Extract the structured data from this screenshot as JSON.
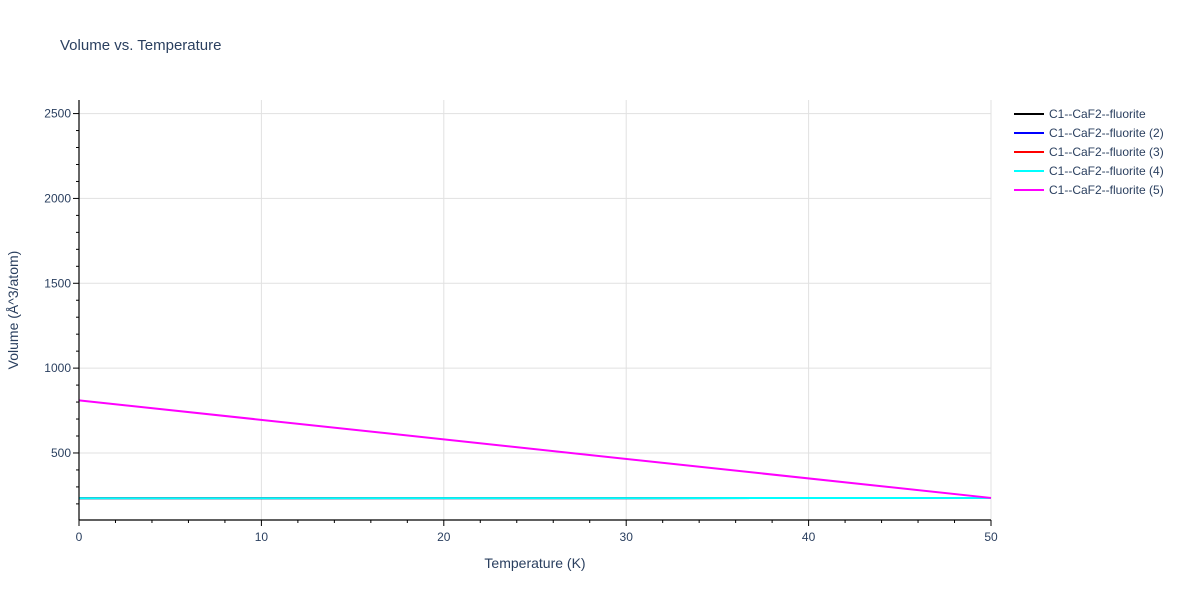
{
  "chart_data": {
    "type": "line",
    "title": "Volume vs. Temperature",
    "xlabel": "Temperature (K)",
    "ylabel": "Volume (Å^3/atom)",
    "xlim": [
      0,
      50
    ],
    "ylim": [
      105,
      2580
    ],
    "x_ticks": [
      0,
      10,
      20,
      30,
      40,
      50
    ],
    "x_tick_labels": [
      "0",
      "10",
      "20",
      "30",
      "40",
      "50"
    ],
    "y_ticks": [
      500,
      1000,
      1500,
      2000,
      2500
    ],
    "y_tick_labels": [
      "500",
      "1000",
      "1500",
      "2000",
      "2500"
    ],
    "grid": true,
    "legend_position": "top-right",
    "series": [
      {
        "name": "C1--CaF2--fluorite",
        "color": "#000000",
        "x": [
          0,
          50
        ],
        "y": [
          233,
          235
        ]
      },
      {
        "name": "C1--CaF2--fluorite (2)",
        "color": "#0000ff",
        "x": [
          0,
          50
        ],
        "y": [
          233,
          235
        ]
      },
      {
        "name": "C1--CaF2--fluorite (3)",
        "color": "#ff0000",
        "x": [
          0,
          50
        ],
        "y": [
          233,
          235
        ]
      },
      {
        "name": "C1--CaF2--fluorite (4)",
        "color": "#00ffff",
        "x": [
          0,
          50
        ],
        "y": [
          233,
          235
        ]
      },
      {
        "name": "C1--CaF2--fluorite (5)",
        "color": "#ff00ff",
        "x": [
          0,
          50
        ],
        "y": [
          810,
          235
        ]
      }
    ]
  }
}
